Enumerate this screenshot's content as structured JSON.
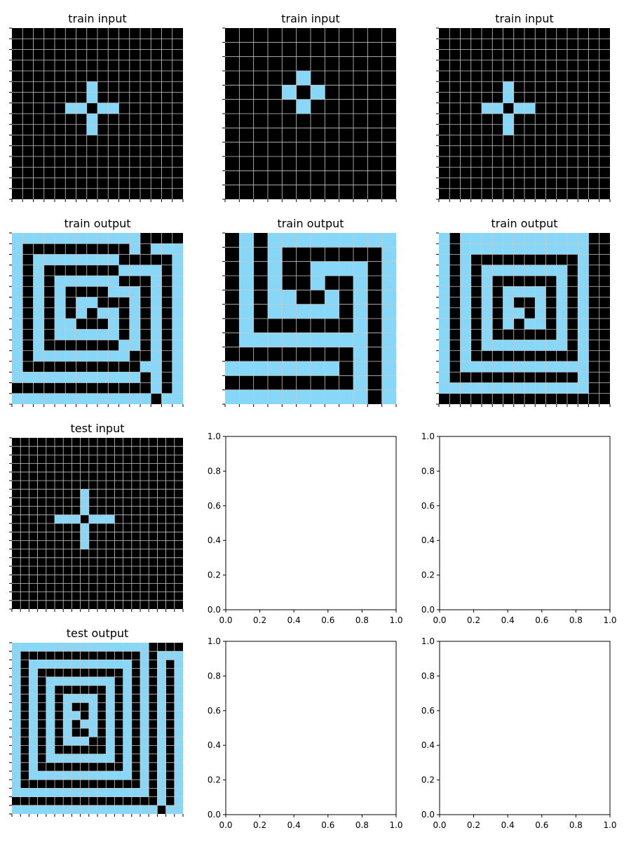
{
  "palette": {
    "0": "#000000",
    "8": "#87d8f8"
  },
  "grid_line_color": "#c8c8c8",
  "chart_data": [
    {
      "type": "heatmap",
      "title": "train input",
      "size": 16,
      "cells_color8": [
        [
          5,
          7
        ],
        [
          6,
          7
        ],
        [
          7,
          5
        ],
        [
          7,
          6
        ],
        [
          7,
          8
        ],
        [
          7,
          9
        ],
        [
          8,
          7
        ],
        [
          9,
          7
        ]
      ]
    },
    {
      "type": "heatmap",
      "title": "train input",
      "size": 12,
      "cells_color8": [
        [
          3,
          5
        ],
        [
          4,
          4
        ],
        [
          4,
          6
        ],
        [
          5,
          5
        ]
      ]
    },
    {
      "type": "heatmap",
      "title": "train input",
      "size": 16,
      "cells_color8": [
        [
          5,
          6
        ],
        [
          6,
          6
        ],
        [
          7,
          4
        ],
        [
          7,
          5
        ],
        [
          7,
          7
        ],
        [
          7,
          8
        ],
        [
          8,
          6
        ],
        [
          9,
          6
        ]
      ]
    },
    {
      "type": "heatmap",
      "title": "train output",
      "size": 16,
      "rows": [
        "1111111111110000",
        "1000000000010111",
        "1011111111000001",
        "1010000000111101",
        "1010111111000101",
        "1010100001110101",
        "1010101100010101",
        "1010101011010101",
        "1010110001010101",
        "1010111111010101",
        "1010000000110101",
        "1011111111100101",
        "1000000000001101",
        "1111111111110101",
        "0000000000000101",
        "1111111111111011"
      ]
    },
    {
      "type": "heatmap",
      "title": "train output",
      "size": 12,
      "rows": [
        "010111111111",
        "010100000001",
        "010100111101",
        "010100100101",
        "010110010101",
        "010111110101",
        "010000000101",
        "011111111101",
        "000000000101",
        "111111110101",
        "000000000101",
        "111111111101"
      ]
    },
    {
      "type": "heatmap",
      "title": "train output",
      "size": 16,
      "rows": [
        "1011111111111100",
        "1011111111111100",
        "1010000000000100",
        "1010111111110100",
        "1010100000010100",
        "1010101111010100",
        "1010101001010100",
        "1010101101010100",
        "1010101011010100",
        "1010100000010100",
        "1010111111110100",
        "1010000000000100",
        "1011111111111100",
        "1000000000000100",
        "1111111111111100",
        "0000000000000000"
      ]
    },
    {
      "type": "heatmap",
      "title": "test input",
      "size": 20,
      "cells_color8": [
        [
          6,
          8
        ],
        [
          7,
          8
        ],
        [
          8,
          8
        ],
        [
          9,
          5
        ],
        [
          9,
          6
        ],
        [
          9,
          7
        ],
        [
          9,
          9
        ],
        [
          9,
          10
        ],
        [
          9,
          11
        ],
        [
          10,
          8
        ],
        [
          11,
          8
        ],
        [
          12,
          8
        ]
      ]
    },
    {
      "type": "heatmap",
      "title": "test output",
      "size": 20,
      "rows": [
        "11111111111111110000",
        "10000000000000010111",
        "10111111111111010101",
        "10100000000001010101",
        "10101111111101010101",
        "10101000000101010101",
        "10101011110101010101",
        "10101010010101010101",
        "10101011010101010101",
        "10101010110101010101",
        "10101010010101010101",
        "10101011100101010101",
        "10101000000101010101",
        "10101111111101010101",
        "10100000000001010101",
        "10111111111111010101",
        "10000000000000010101",
        "11111111111111110101",
        "00000000000000000101",
        "11111111111111111011"
      ]
    }
  ],
  "empty_axes": {
    "ticks": [
      0.0,
      0.2,
      0.4,
      0.6,
      0.8,
      1.0
    ],
    "tick_labels": [
      "0.0",
      "0.2",
      "0.4",
      "0.6",
      "0.8",
      "1.0"
    ],
    "count": 4
  }
}
